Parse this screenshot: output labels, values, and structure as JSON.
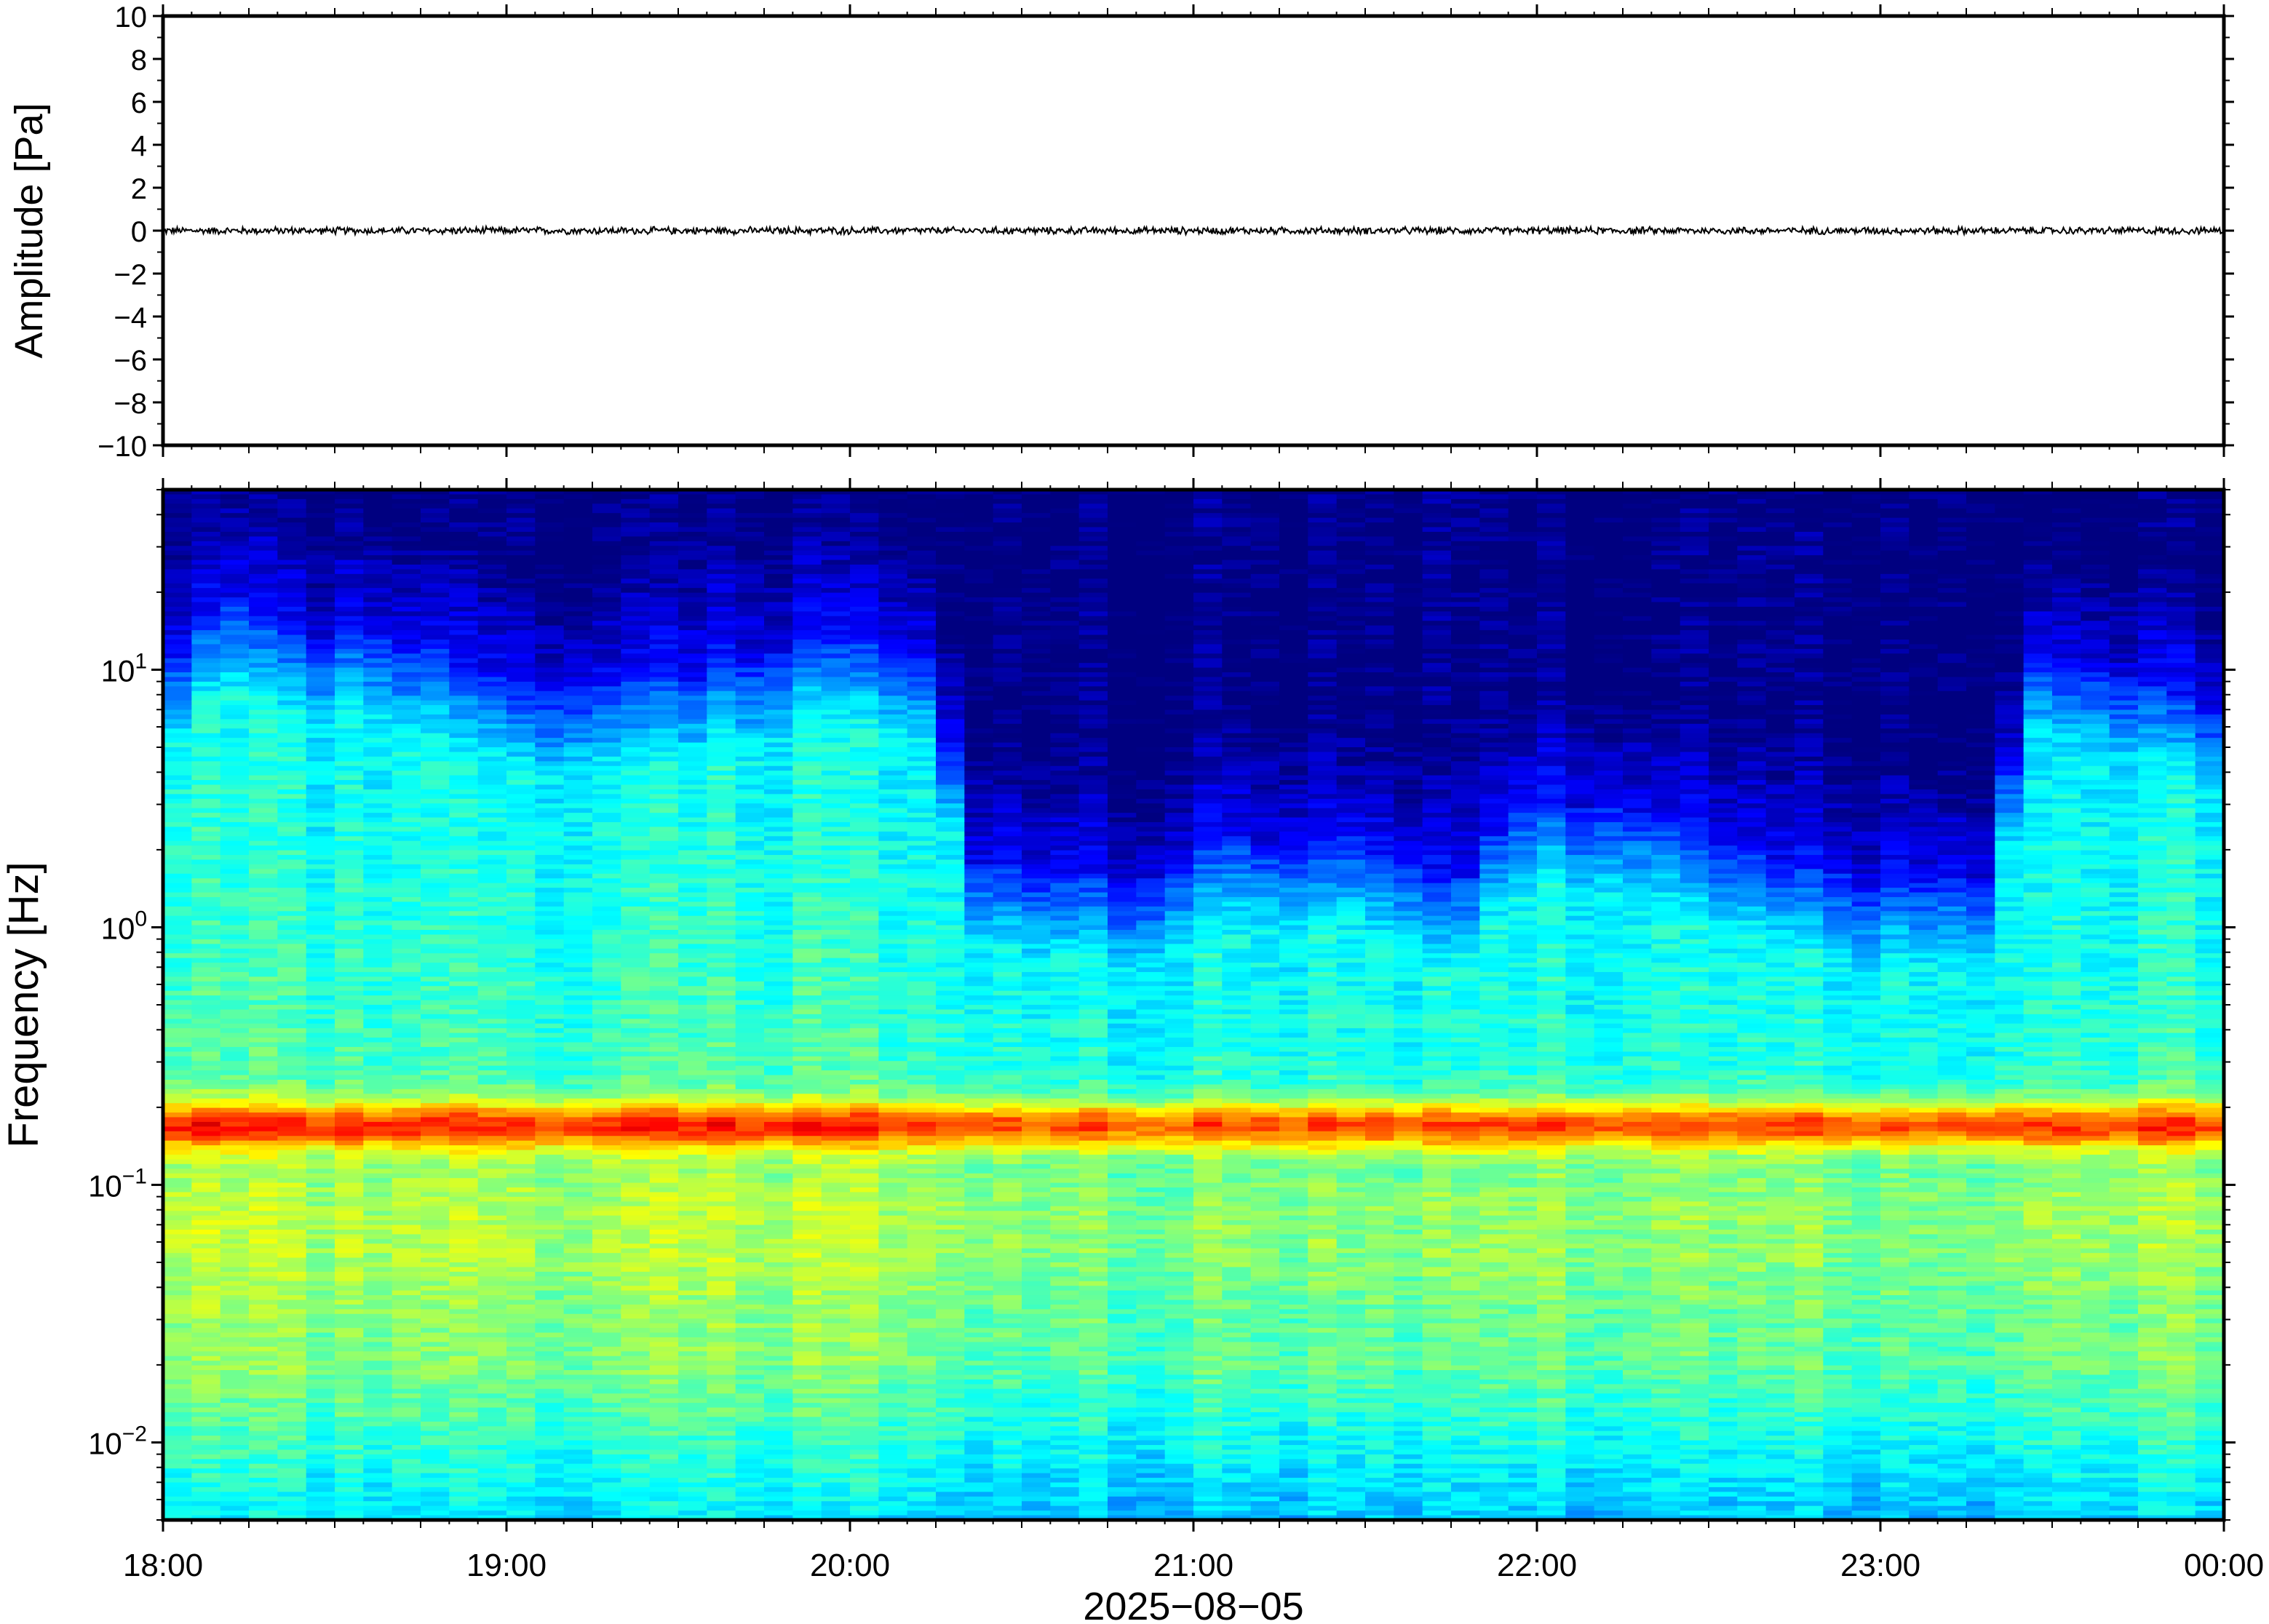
{
  "chart_data": [
    {
      "type": "line",
      "panel": "waveform",
      "ylabel": "Amplitude [Pa]",
      "ylim": [
        -10,
        10
      ],
      "yticks": [
        10,
        8,
        6,
        4,
        2,
        0,
        -2,
        -4,
        -6,
        -8,
        -10
      ],
      "ytick_labels": [
        "10",
        "8",
        "6",
        "4",
        "2",
        "0",
        "−2",
        "−4",
        "−6",
        "−8",
        "−10"
      ],
      "xlim": [
        "2025-08-05T18:00",
        "2025-08-06T00:00"
      ],
      "series": [
        {
          "color": "#000000",
          "baseline": 0,
          "peak_amplitude_pa": 0.2
        }
      ]
    },
    {
      "type": "heatmap",
      "panel": "spectrogram",
      "ylabel": "Frequency [Hz]",
      "yscale": "log",
      "ylim_hz": [
        0.005,
        50
      ],
      "ytick_labels": [
        {
          "base": "10",
          "exp": "1",
          "value": 10
        },
        {
          "base": "10",
          "exp": "0",
          "value": 1
        },
        {
          "base": "10",
          "exp": "−1",
          "value": 0.1
        },
        {
          "base": "10",
          "exp": "−2",
          "value": 0.01
        }
      ],
      "xlabel": "2025−08−05",
      "xticks": [
        "18:00",
        "19:00",
        "20:00",
        "21:00",
        "22:00",
        "23:00",
        "00:00"
      ],
      "colormap": "jet",
      "microbarom_peak_hz": 0.17,
      "upper_cutoff_hz": [
        {
          "time": "18:00",
          "hz": 10
        },
        {
          "time": "18:10",
          "hz": 17
        },
        {
          "time": "18:30",
          "hz": 14
        },
        {
          "time": "18:45",
          "hz": 12
        },
        {
          "time": "19:00",
          "hz": 9
        },
        {
          "time": "19:30",
          "hz": 9
        },
        {
          "time": "19:45",
          "hz": 11
        },
        {
          "time": "20:00",
          "hz": 13
        },
        {
          "time": "20:15",
          "hz": 12
        },
        {
          "time": "20:20",
          "hz": 2
        },
        {
          "time": "20:30",
          "hz": 1.6
        },
        {
          "time": "20:45",
          "hz": 1.4
        },
        {
          "time": "21:00",
          "hz": 2
        },
        {
          "time": "21:30",
          "hz": 2.2
        },
        {
          "time": "21:45",
          "hz": 1.5
        },
        {
          "time": "22:00",
          "hz": 3
        },
        {
          "time": "22:15",
          "hz": 2.8
        },
        {
          "time": "22:30",
          "hz": 2
        },
        {
          "time": "22:45",
          "hz": 1.6
        },
        {
          "time": "23:00",
          "hz": 1.5
        },
        {
          "time": "23:20",
          "hz": 1.4
        },
        {
          "time": "23:25",
          "hz": 11
        },
        {
          "time": "23:45",
          "hz": 9
        },
        {
          "time": "00:00",
          "hz": 7
        }
      ]
    }
  ]
}
